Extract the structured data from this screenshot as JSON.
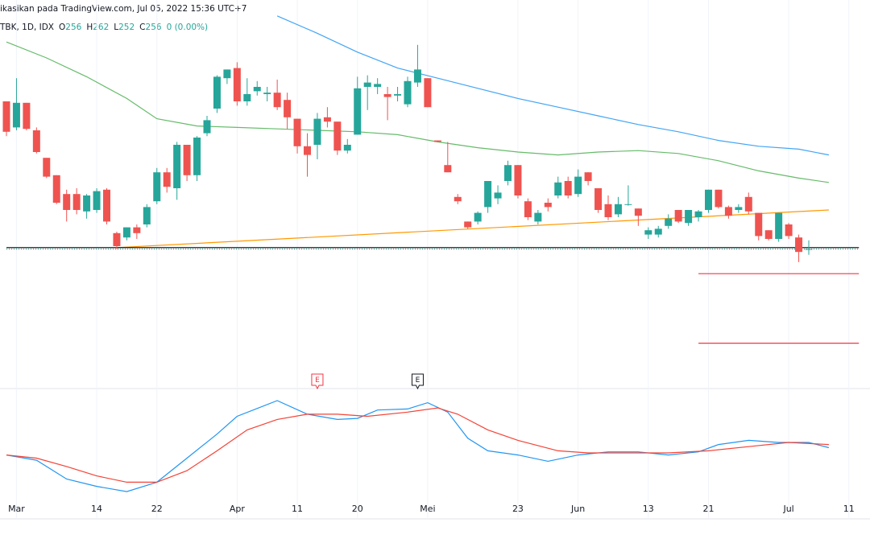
{
  "header": {
    "published": "ikasikan pada TradingView.com, Jul 05, 2022 15:36 UTC+7",
    "symbol": "TBK, 1D, IDX",
    "ohlc": [
      {
        "label": "O",
        "value": "256"
      },
      {
        "label": "H",
        "value": "262"
      },
      {
        "label": "L",
        "value": "252"
      },
      {
        "label": "C",
        "value": "256"
      }
    ],
    "change": "0 (0.00%)"
  },
  "chart_data": [
    {
      "type": "candlestick",
      "up_color": "#26a69a",
      "down_color": "#ef5350",
      "ylim": [
        178,
        428
      ],
      "categories": [
        null,
        "Mar",
        null,
        null,
        null,
        null,
        null,
        null,
        null,
        "14",
        null,
        null,
        null,
        null,
        null,
        "22",
        null,
        null,
        null,
        null,
        null,
        null,
        null,
        "Apr",
        null,
        null,
        null,
        null,
        null,
        "11",
        null,
        null,
        null,
        null,
        null,
        "20",
        null,
        null,
        null,
        null,
        null,
        null,
        "Mei",
        null,
        null,
        null,
        null,
        null,
        null,
        null,
        null,
        "23",
        null,
        null,
        null,
        null,
        null,
        "Jun",
        null,
        null,
        null,
        null,
        null,
        null,
        "13",
        null,
        null,
        null,
        null,
        null,
        "21",
        null,
        null,
        null,
        null,
        null,
        null,
        null,
        "Jul",
        null,
        null,
        null,
        null,
        null,
        "11"
      ],
      "open": [
        358,
        340,
        357,
        338,
        319,
        307,
        294,
        294,
        282,
        283,
        297,
        267,
        264,
        271,
        273,
        289,
        309,
        298,
        328,
        307,
        336,
        353,
        374,
        381,
        358,
        365,
        363,
        364,
        359,
        346,
        327,
        328,
        347,
        344,
        324,
        335,
        368,
        368,
        363,
        362,
        356,
        371,
        374,
        331,
        314,
        292,
        275,
        275,
        285,
        291,
        303,
        314,
        289,
        275,
        288,
        293,
        303,
        294,
        309,
        298,
        287,
        280,
        287,
        284,
        266,
        266,
        272,
        283,
        274,
        278,
        283,
        297,
        285,
        283,
        292,
        281,
        269,
        263,
        273,
        264,
        256,
        null,
        null,
        null,
        null
      ],
      "high": [
        358,
        374,
        357,
        340,
        319,
        307,
        297,
        298,
        294,
        298,
        298,
        268,
        271,
        273,
        287,
        312,
        312,
        330,
        328,
        334,
        348,
        376,
        380,
        385,
        374,
        372,
        368,
        373,
        364,
        346,
        336,
        350,
        354,
        344,
        332,
        375,
        376,
        374,
        368,
        368,
        375,
        397,
        374,
        331,
        330,
        294,
        275,
        282,
        303,
        300,
        317,
        314,
        291,
        283,
        291,
        306,
        306,
        311,
        309,
        298,
        293,
        292,
        300,
        284,
        271,
        272,
        280,
        283,
        283,
        283,
        297,
        297,
        286,
        287,
        295,
        281,
        269,
        281,
        274,
        266,
        262,
        null,
        null,
        null,
        null
      ],
      "low": [
        334,
        338,
        338,
        322,
        305,
        287,
        275,
        280,
        277,
        281,
        273,
        256,
        262,
        263,
        271,
        287,
        295,
        290,
        303,
        303,
        334,
        350,
        370,
        355,
        355,
        362,
        358,
        352,
        339,
        322,
        306,
        318,
        340,
        321,
        322,
        335,
        352,
        363,
        345,
        358,
        354,
        368,
        354,
        330,
        309,
        287,
        270,
        273,
        281,
        287,
        300,
        291,
        276,
        273,
        282,
        291,
        291,
        292,
        300,
        281,
        276,
        278,
        286,
        272,
        263,
        264,
        270,
        274,
        272,
        275,
        281,
        284,
        277,
        281,
        280,
        262,
        262,
        261,
        263,
        247,
        252,
        null,
        null,
        null,
        null
      ],
      "close": [
        337,
        357,
        339,
        323,
        306,
        288,
        283,
        283,
        293,
        296,
        275,
        258,
        271,
        267,
        285,
        309,
        299,
        328,
        307,
        333,
        345,
        375,
        380,
        358,
        363,
        368,
        364,
        354,
        347,
        327,
        321,
        346,
        344,
        324,
        328,
        367,
        371,
        370,
        361,
        363,
        372,
        380,
        354,
        330,
        309,
        289,
        271,
        281,
        303,
        295,
        314,
        293,
        278,
        281,
        285,
        302,
        293,
        306,
        303,
        283,
        278,
        287,
        287,
        279,
        269,
        270,
        277,
        275,
        283,
        282,
        297,
        285,
        279,
        285,
        282,
        265,
        263,
        281,
        265,
        254,
        256,
        null,
        null,
        null,
        null
      ],
      "lines": [
        {
          "color": "#66bb6a",
          "x": [
            0,
            4,
            8,
            12,
            15,
            19,
            23,
            27,
            31,
            35,
            39,
            43,
            47,
            51,
            55,
            59,
            63,
            67,
            71,
            75,
            79,
            82
          ],
          "values": [
            399,
            388,
            375,
            360,
            346,
            341,
            340,
            339,
            338,
            337,
            335,
            330,
            326,
            323,
            321,
            323,
            324,
            322,
            317,
            310,
            305,
            302
          ]
        },
        {
          "color": "#42a5f5",
          "x": [
            27,
            31,
            35,
            39,
            43,
            47,
            51,
            55,
            59,
            63,
            67,
            71,
            75,
            79,
            82
          ],
          "values": [
            417,
            405,
            392,
            381,
            374,
            367,
            360,
            354,
            348,
            342,
            337,
            331,
            327,
            325,
            321
          ]
        },
        {
          "color": "#ff9800",
          "x": [
            11,
            82
          ],
          "values": [
            257,
            283
          ]
        },
        {
          "color": "#000000",
          "x": [
            0,
            85
          ],
          "values": [
            257,
            257
          ]
        },
        {
          "color": "#26a69a",
          "dash": true,
          "x": [
            0,
            85
          ],
          "values": [
            256,
            256
          ]
        },
        {
          "color": "#f23645",
          "x": [
            69,
            85
          ],
          "values": [
            239,
            239
          ]
        },
        {
          "color": "#f23645",
          "x": [
            69,
            85
          ],
          "values": [
            191,
            191
          ]
        }
      ],
      "events": [
        {
          "x": 31,
          "label": "E",
          "color": "#f23645"
        },
        {
          "x": 41,
          "label": "E",
          "color": "#131722"
        }
      ]
    },
    {
      "type": "line",
      "ylim": [
        0,
        100
      ],
      "series": [
        {
          "color": "#2196f3",
          "x": [
            0,
            3,
            6,
            9,
            12,
            15,
            18,
            21,
            23,
            27,
            30,
            33,
            35,
            37,
            40,
            42,
            44,
            46,
            48,
            51,
            54,
            57,
            60,
            63,
            66,
            69,
            71,
            74,
            77,
            80,
            82
          ],
          "values": [
            38,
            33,
            15,
            8,
            3,
            12,
            35,
            58,
            75,
            90,
            77,
            72,
            73,
            81,
            82,
            88,
            79,
            54,
            42,
            38,
            32,
            38,
            41,
            41,
            38,
            41,
            48,
            52,
            50,
            50,
            45
          ]
        },
        {
          "color": "#f44336",
          "x": [
            0,
            3,
            6,
            9,
            12,
            15,
            18,
            21,
            24,
            27,
            30,
            33,
            36,
            40,
            43,
            45,
            48,
            51,
            55,
            58,
            62,
            66,
            70,
            74,
            78,
            82
          ],
          "values": [
            38,
            35,
            27,
            18,
            12,
            12,
            23,
            42,
            62,
            72,
            77,
            77,
            75,
            79,
            83,
            77,
            62,
            52,
            42,
            40,
            40,
            40,
            42,
            46,
            50,
            48
          ]
        }
      ]
    }
  ]
}
